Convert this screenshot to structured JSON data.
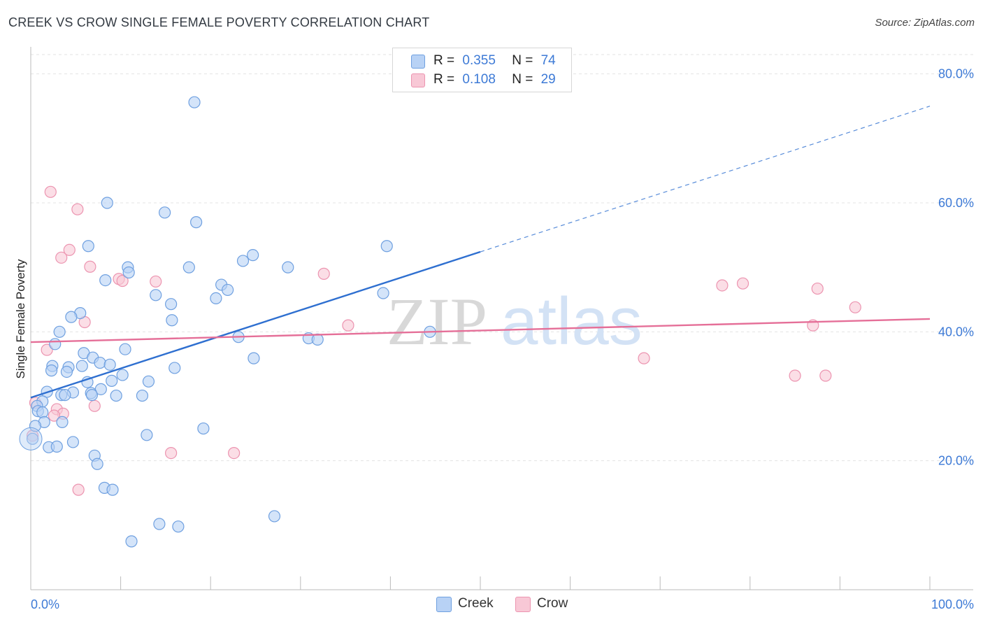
{
  "title": "CREEK VS CROW SINGLE FEMALE POVERTY CORRELATION CHART",
  "source": "Source: ZipAtlas.com",
  "watermark": {
    "zip": "ZIP",
    "atlas": "atlas"
  },
  "legend": {
    "rows": [
      {
        "r_label": "R =",
        "r_value": "0.355",
        "n_label": "N =",
        "n_value": "74"
      },
      {
        "r_label": "R =",
        "r_value": "0.108",
        "n_label": "N =",
        "n_value": "29"
      }
    ]
  },
  "colors": {
    "creek_fill": "#b8d2f5",
    "creek_stroke": "#6fa0e0",
    "creek_line": "#2e6fd0",
    "crow_fill": "#f8c8d6",
    "crow_stroke": "#ec94b0",
    "crow_line": "#e56f98",
    "grid": "#e3e3e3",
    "tick_text": "#3d7ad6"
  },
  "chart_data": {
    "type": "scatter",
    "title": "CREEK VS CROW SINGLE FEMALE POVERTY CORRELATION CHART",
    "xlabel": "",
    "ylabel": "Single Female Poverty",
    "xlim": [
      0,
      100
    ],
    "ylim": [
      0,
      83
    ],
    "x_tick_labels": [
      "0.0%",
      "100.0%"
    ],
    "y_ticks": [
      20,
      40,
      60,
      80
    ],
    "y_tick_labels": [
      "20.0%",
      "40.0%",
      "60.0%",
      "80.0%"
    ],
    "grid": true,
    "legend_position": "top-center",
    "series": [
      {
        "name": "Creek",
        "points": [
          [
            18.2,
            75.6
          ],
          [
            8.5,
            60.0
          ],
          [
            14.9,
            58.5
          ],
          [
            18.4,
            57.0
          ],
          [
            6.4,
            53.3
          ],
          [
            39.6,
            53.3
          ],
          [
            24.7,
            51.9
          ],
          [
            23.6,
            51.0
          ],
          [
            10.8,
            50.0
          ],
          [
            17.6,
            50.0
          ],
          [
            28.6,
            50.0
          ],
          [
            10.9,
            49.2
          ],
          [
            8.3,
            48.0
          ],
          [
            21.2,
            47.3
          ],
          [
            21.9,
            46.5
          ],
          [
            39.2,
            46.0
          ],
          [
            13.9,
            45.7
          ],
          [
            20.6,
            45.2
          ],
          [
            15.6,
            44.3
          ],
          [
            5.5,
            42.9
          ],
          [
            4.5,
            42.3
          ],
          [
            15.7,
            41.8
          ],
          [
            3.2,
            40.0
          ],
          [
            44.4,
            40.0
          ],
          [
            23.1,
            39.2
          ],
          [
            30.9,
            39.0
          ],
          [
            31.9,
            38.8
          ],
          [
            2.7,
            38.1
          ],
          [
            10.5,
            37.3
          ],
          [
            5.9,
            36.7
          ],
          [
            6.9,
            36.0
          ],
          [
            24.8,
            35.9
          ],
          [
            7.7,
            35.2
          ],
          [
            8.8,
            34.9
          ],
          [
            2.4,
            34.7
          ],
          [
            5.7,
            34.7
          ],
          [
            4.2,
            34.5
          ],
          [
            16.0,
            34.4
          ],
          [
            2.3,
            34.0
          ],
          [
            4.0,
            33.8
          ],
          [
            10.2,
            33.3
          ],
          [
            9.0,
            32.4
          ],
          [
            13.1,
            32.3
          ],
          [
            6.3,
            32.2
          ],
          [
            7.8,
            31.1
          ],
          [
            1.8,
            30.7
          ],
          [
            4.7,
            30.6
          ],
          [
            6.7,
            30.5
          ],
          [
            3.4,
            30.2
          ],
          [
            3.8,
            30.2
          ],
          [
            6.8,
            30.2
          ],
          [
            9.5,
            30.1
          ],
          [
            12.4,
            30.1
          ],
          [
            1.3,
            29.2
          ],
          [
            0.7,
            28.5
          ],
          [
            0.8,
            27.7
          ],
          [
            1.3,
            27.5
          ],
          [
            1.5,
            26.0
          ],
          [
            3.5,
            26.0
          ],
          [
            0.5,
            25.4
          ],
          [
            19.2,
            25.0
          ],
          [
            12.9,
            24.0
          ],
          [
            0.2,
            23.4
          ],
          [
            4.7,
            22.9
          ],
          [
            2.0,
            22.1
          ],
          [
            2.9,
            22.2
          ],
          [
            7.1,
            20.8
          ],
          [
            7.4,
            19.5
          ],
          [
            8.2,
            15.8
          ],
          [
            9.1,
            15.5
          ],
          [
            27.1,
            11.4
          ],
          [
            14.3,
            10.2
          ],
          [
            16.4,
            9.8
          ],
          [
            11.2,
            7.5
          ]
        ],
        "trend": {
          "x_start": 0,
          "y_start": 29.8,
          "x_end": 50,
          "y_end": 52.4,
          "dashed_to_x": 100,
          "dashed_to_y": 75.0
        }
      },
      {
        "name": "Crow",
        "points": [
          [
            2.2,
            61.7
          ],
          [
            5.2,
            59.0
          ],
          [
            3.4,
            51.5
          ],
          [
            4.3,
            52.7
          ],
          [
            6.6,
            50.1
          ],
          [
            9.8,
            48.2
          ],
          [
            10.2,
            47.9
          ],
          [
            13.9,
            47.8
          ],
          [
            32.6,
            49.0
          ],
          [
            76.9,
            47.2
          ],
          [
            79.2,
            47.5
          ],
          [
            87.5,
            46.7
          ],
          [
            91.7,
            43.8
          ],
          [
            6.0,
            41.5
          ],
          [
            35.3,
            41.0
          ],
          [
            87.0,
            41.0
          ],
          [
            1.8,
            37.2
          ],
          [
            68.2,
            35.9
          ],
          [
            85.0,
            33.2
          ],
          [
            88.4,
            33.2
          ],
          [
            0.5,
            29.0
          ],
          [
            7.1,
            28.5
          ],
          [
            2.9,
            28.0
          ],
          [
            3.6,
            27.3
          ],
          [
            2.6,
            27.0
          ],
          [
            0.2,
            23.9
          ],
          [
            15.6,
            21.2
          ],
          [
            22.6,
            21.2
          ],
          [
            5.3,
            15.5
          ]
        ],
        "trend": {
          "x_start": 0,
          "y_start": 38.4,
          "x_end": 100,
          "y_end": 42.0
        }
      }
    ]
  }
}
